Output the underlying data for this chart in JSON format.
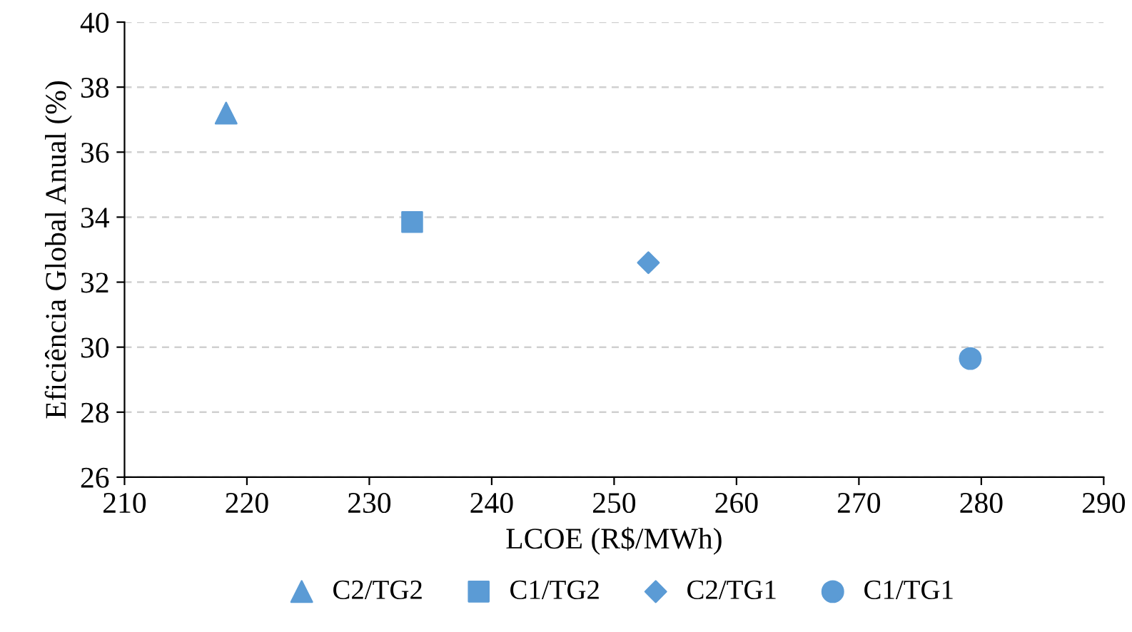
{
  "chart_data": {
    "type": "scatter",
    "xlabel": "LCOE (R$/MWh)",
    "ylabel": "Eficiência Global Anual (%)",
    "xlim": [
      210,
      290
    ],
    "xticks": [
      210,
      220,
      230,
      240,
      250,
      260,
      270,
      280,
      290
    ],
    "ylim": [
      26,
      40
    ],
    "yticks": [
      26,
      28,
      30,
      32,
      34,
      36,
      38,
      40
    ],
    "grid": "y",
    "legend": "bottom",
    "series": [
      {
        "name": "C2/TG2",
        "color": "#5b9bd5",
        "marker": "triangle",
        "x": [
          218.3
        ],
        "values": [
          37.2
        ]
      },
      {
        "name": "C1/TG2",
        "color": "#5b9bd5",
        "marker": "square",
        "x": [
          233.5
        ],
        "values": [
          33.85
        ]
      },
      {
        "name": "C2/TG1",
        "color": "#5b9bd5",
        "marker": "diamond",
        "x": [
          252.8
        ],
        "values": [
          32.6
        ]
      },
      {
        "name": "C1/TG1",
        "color": "#5b9bd5",
        "marker": "circle",
        "x": [
          279.1
        ],
        "values": [
          29.65
        ]
      }
    ]
  }
}
